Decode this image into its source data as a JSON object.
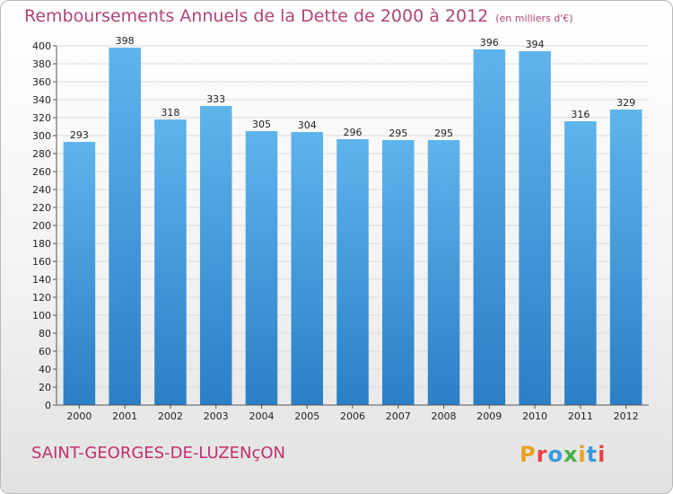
{
  "header": {
    "title": "Remboursements Annuels de la Dette de 2000 à 2012",
    "unit": "(en milliers d'€)"
  },
  "footer": {
    "commune": "SAINT-GEORGES-DE-LUZENçON",
    "logo": "Proxiti",
    "logo_colors": [
      "#e8a020",
      "#e84040",
      "#3a9ad8",
      "#48b048",
      "#e8a020",
      "#3a9ad8",
      "#e84040"
    ]
  },
  "colors": {
    "bar_top": "#5fb4ec",
    "bar_bottom": "#2a7fc6",
    "grid": "#d9d9d9",
    "axis": "#555555",
    "title": "#b0447a"
  },
  "chart_data": {
    "type": "bar",
    "title": "Remboursements Annuels de la Dette de 2000 à 2012",
    "subtitle": "(en milliers d'€)",
    "xlabel": "",
    "ylabel": "",
    "categories": [
      "2000",
      "2001",
      "2002",
      "2003",
      "2004",
      "2005",
      "2006",
      "2007",
      "2008",
      "2009",
      "2010",
      "2011",
      "2012"
    ],
    "values": [
      293,
      398,
      318,
      333,
      305,
      304,
      296,
      295,
      295,
      396,
      394,
      316,
      329
    ],
    "ylim": [
      0,
      400
    ],
    "yticks": [
      0,
      20,
      40,
      60,
      80,
      100,
      120,
      140,
      160,
      180,
      200,
      220,
      240,
      260,
      280,
      300,
      320,
      340,
      360,
      380,
      400
    ],
    "grid": true,
    "data_labels": true
  }
}
